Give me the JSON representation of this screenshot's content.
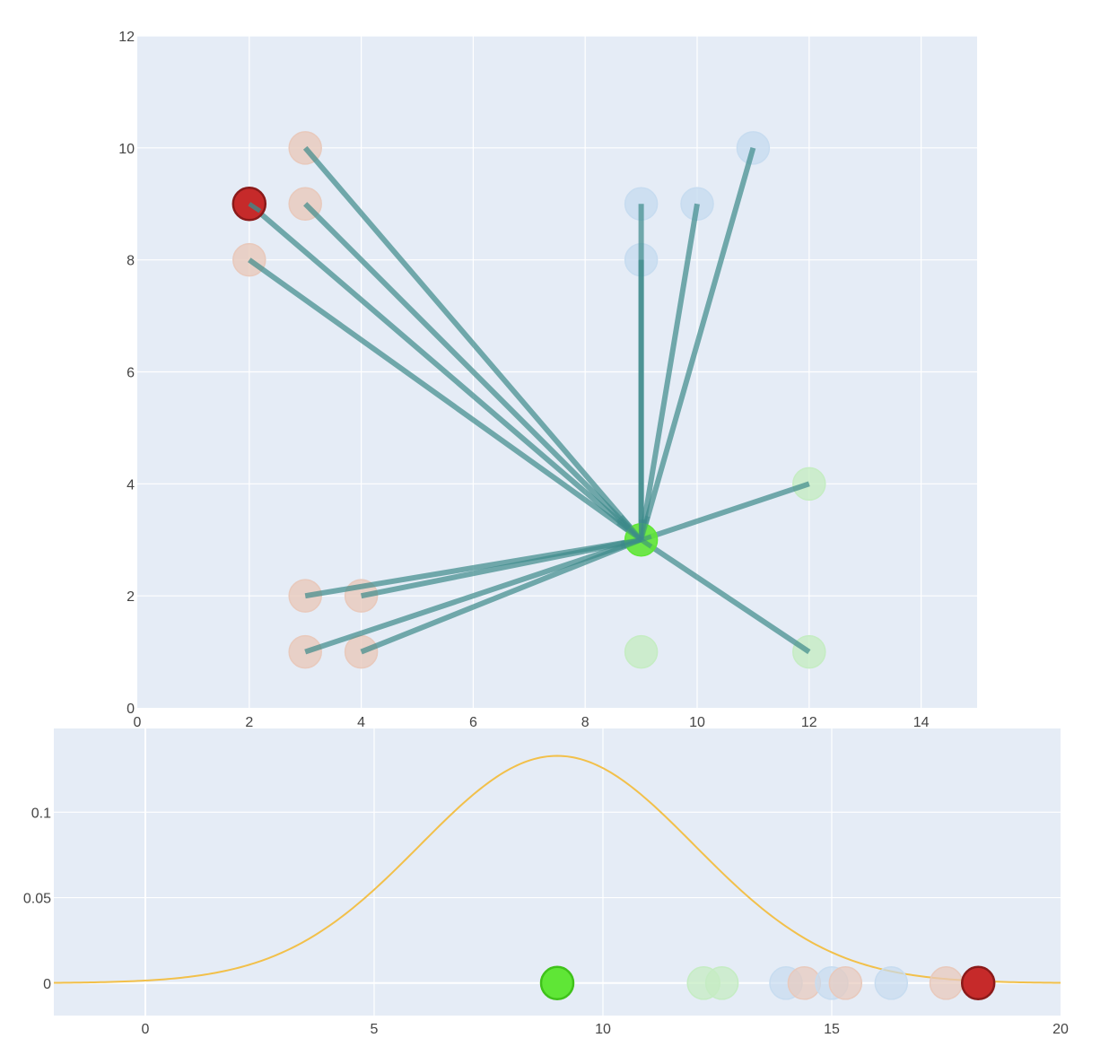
{
  "chart_data": [
    {
      "type": "scatter",
      "title": "",
      "xlabel": "",
      "ylabel": "",
      "xlim": [
        0,
        15
      ],
      "ylim": [
        0,
        12
      ],
      "x_ticks": [
        0,
        2,
        4,
        6,
        8,
        10,
        12,
        14
      ],
      "y_ticks": [
        0,
        2,
        4,
        6,
        8,
        10,
        12
      ],
      "grid": true,
      "background_color": "#e5ecf6",
      "line_color": "#3d8a8a",
      "center": {
        "x": 9,
        "y": 3,
        "color": "#5fe636"
      },
      "highlight": {
        "x": 2,
        "y": 9,
        "color": "#c62a2a"
      },
      "series": [
        {
          "color": "#e8c9bc",
          "points": [
            [
              3,
              10
            ],
            [
              3,
              9
            ],
            [
              2,
              9
            ],
            [
              2,
              8
            ],
            [
              3,
              2
            ],
            [
              4,
              2
            ],
            [
              3,
              1
            ],
            [
              4,
              1
            ]
          ]
        },
        {
          "color": "#c7dcf0",
          "points": [
            [
              9,
              9
            ],
            [
              10,
              9
            ],
            [
              11,
              10
            ],
            [
              9,
              8
            ]
          ]
        },
        {
          "color": "#c5ecc3",
          "points": [
            [
              12,
              4
            ],
            [
              12,
              1
            ],
            [
              9,
              1
            ]
          ]
        }
      ],
      "lines_to_center": [
        [
          3,
          10
        ],
        [
          3,
          9
        ],
        [
          2,
          9
        ],
        [
          2,
          8
        ],
        [
          9,
          9
        ],
        [
          10,
          9
        ],
        [
          11,
          10
        ],
        [
          9,
          8
        ],
        [
          12,
          4
        ],
        [
          12,
          1
        ],
        [
          3,
          2
        ],
        [
          4,
          2
        ],
        [
          3,
          1
        ],
        [
          4,
          1
        ]
      ]
    },
    {
      "type": "line",
      "title": "",
      "xlabel": "",
      "ylabel": "",
      "xlim": [
        -2,
        20
      ],
      "ylim": [
        -0.019,
        0.149
      ],
      "x_ticks": [
        0,
        5,
        10,
        15,
        20
      ],
      "y_ticks": [
        0,
        0.05,
        0.1
      ],
      "y_tick_labels": [
        "0",
        "0.05",
        "0.1"
      ],
      "grid": true,
      "background_color": "#e5ecf6",
      "curve": {
        "type": "normal_pdf",
        "mean": 9,
        "std": 3,
        "color": "#f2c04a"
      },
      "points": [
        {
          "x": 9.0,
          "y": 0,
          "color": "#5fe636",
          "opacity": 1
        },
        {
          "x": 12.2,
          "y": 0,
          "color": "#c5ecc3",
          "opacity": 0.75
        },
        {
          "x": 12.6,
          "y": 0,
          "color": "#c5ecc3",
          "opacity": 0.75
        },
        {
          "x": 14.0,
          "y": 0,
          "color": "#c7dcf0",
          "opacity": 0.7
        },
        {
          "x": 14.4,
          "y": 0,
          "color": "#e8c9bc",
          "opacity": 0.7
        },
        {
          "x": 15.0,
          "y": 0,
          "color": "#c7dcf0",
          "opacity": 0.7
        },
        {
          "x": 15.3,
          "y": 0,
          "color": "#e8c9bc",
          "opacity": 0.7
        },
        {
          "x": 16.3,
          "y": 0,
          "color": "#c7dcf0",
          "opacity": 0.7
        },
        {
          "x": 17.5,
          "y": 0,
          "color": "#e8c9bc",
          "opacity": 0.75
        },
        {
          "x": 18.2,
          "y": 0,
          "color": "#c62a2a",
          "opacity": 1
        }
      ]
    }
  ]
}
